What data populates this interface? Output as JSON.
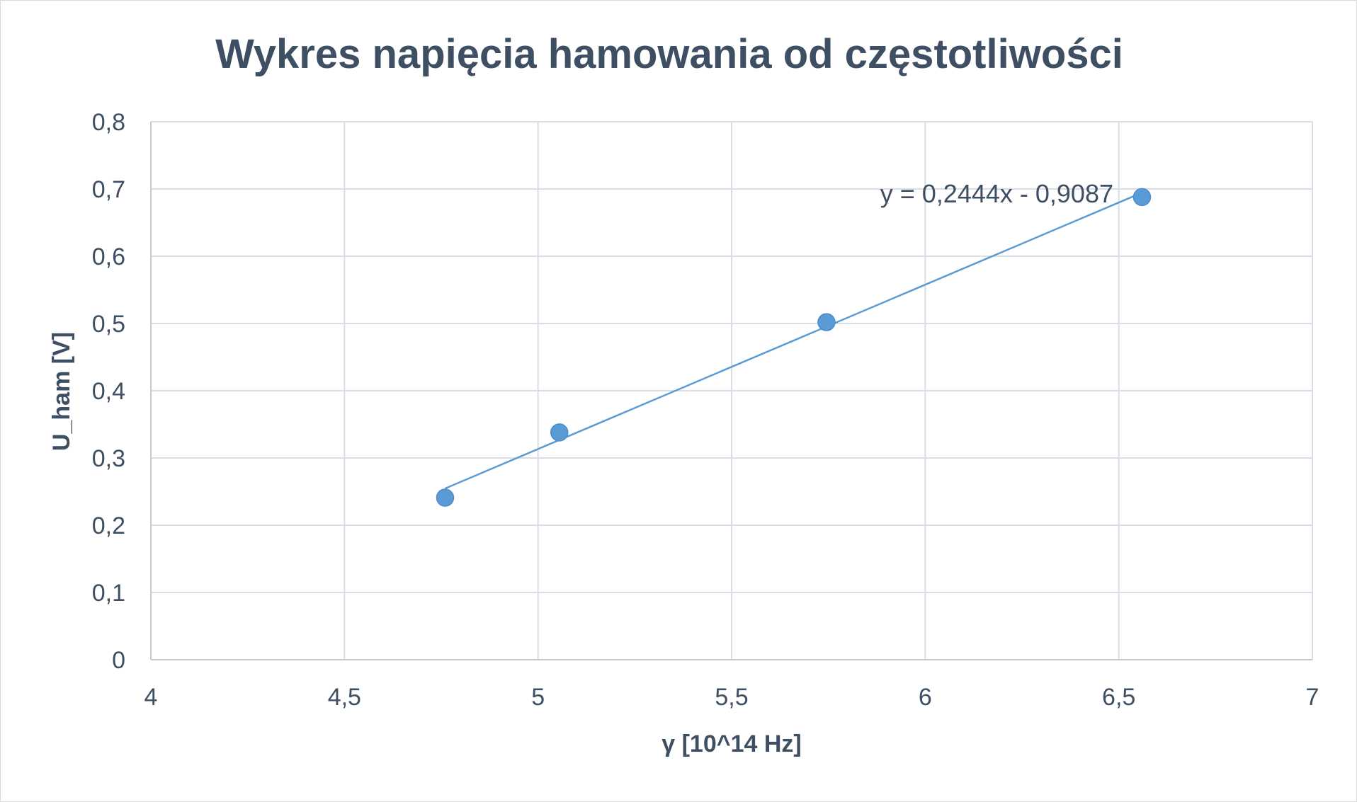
{
  "chart_data": {
    "type": "scatter",
    "title": "Wykres napięcia hamowania od częstotliwości",
    "xlabel": "γ  [10^14 Hz]",
    "ylabel": "U_ham [V]",
    "xlim": [
      4,
      7
    ],
    "ylim": [
      0,
      0.8
    ],
    "x_ticks": [
      4,
      4.5,
      5,
      5.5,
      6,
      6.5,
      7
    ],
    "x_tick_labels": [
      "4",
      "4,5",
      "5",
      "5,5",
      "6",
      "6,5",
      "7"
    ],
    "y_ticks": [
      0,
      0.1,
      0.2,
      0.3,
      0.4,
      0.5,
      0.6,
      0.7,
      0.8
    ],
    "y_tick_labels": [
      "0",
      "0,1",
      "0,2",
      "0,3",
      "0,4",
      "0,5",
      "0,6",
      "0,7",
      "0,8"
    ],
    "grid": true,
    "legend": "none",
    "series": [
      {
        "x": [
          4.76,
          5.055,
          5.745,
          6.56
        ],
        "y": [
          0.241,
          0.338,
          0.502,
          0.688
        ],
        "color": "#5b9bd5"
      }
    ],
    "trendline": {
      "type": "linear",
      "slope": 0.2444,
      "intercept": -0.9087,
      "x_range": [
        4.76,
        6.56
      ],
      "equation_label": "y = 0,2444x - 0,9087",
      "color": "#5b9bd5"
    }
  }
}
